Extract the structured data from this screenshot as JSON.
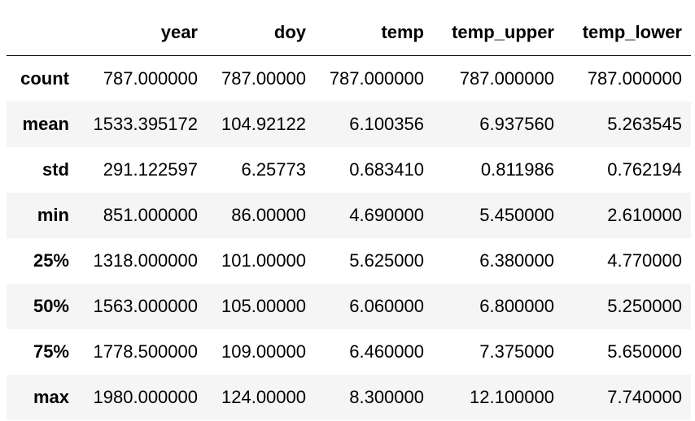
{
  "table": {
    "columns": [
      "year",
      "doy",
      "temp",
      "temp_upper",
      "temp_lower"
    ],
    "rows": [
      {
        "label": "count",
        "cells": [
          "787.000000",
          "787.00000",
          "787.000000",
          "787.000000",
          "787.000000"
        ]
      },
      {
        "label": "mean",
        "cells": [
          "1533.395172",
          "104.92122",
          "6.100356",
          "6.937560",
          "5.263545"
        ]
      },
      {
        "label": "std",
        "cells": [
          "291.122597",
          "6.25773",
          "0.683410",
          "0.811986",
          "0.762194"
        ]
      },
      {
        "label": "min",
        "cells": [
          "851.000000",
          "86.00000",
          "4.690000",
          "5.450000",
          "2.610000"
        ]
      },
      {
        "label": "25%",
        "cells": [
          "1318.000000",
          "101.00000",
          "5.625000",
          "6.380000",
          "4.770000"
        ]
      },
      {
        "label": "50%",
        "cells": [
          "1563.000000",
          "105.00000",
          "6.060000",
          "6.800000",
          "5.250000"
        ]
      },
      {
        "label": "75%",
        "cells": [
          "1778.500000",
          "109.00000",
          "6.460000",
          "7.375000",
          "5.650000"
        ]
      },
      {
        "label": "max",
        "cells": [
          "1980.000000",
          "124.00000",
          "8.300000",
          "12.100000",
          "7.740000"
        ]
      }
    ]
  }
}
